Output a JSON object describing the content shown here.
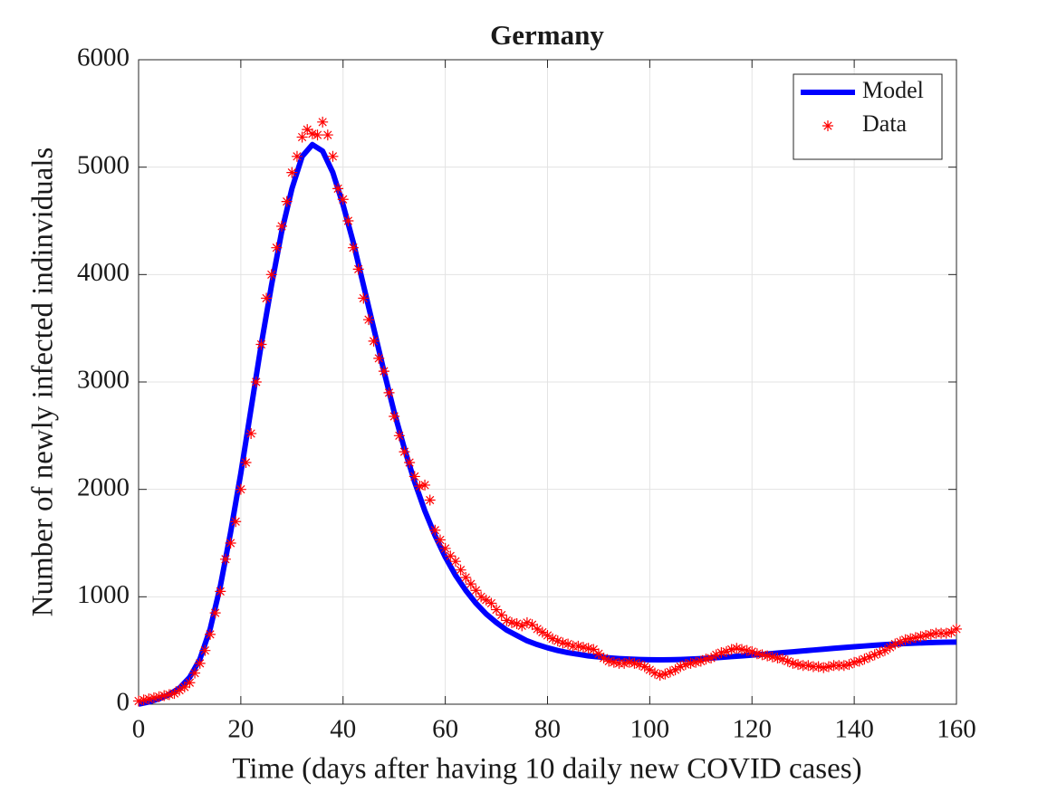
{
  "chart_data": {
    "type": "line",
    "title": "Germany",
    "x_label": "Time (days after having 10 daily new COVID cases)",
    "y_label": "Number of newly infected indinviduals",
    "xlim": [
      0,
      160
    ],
    "xticks": [
      0,
      20,
      40,
      60,
      80,
      100,
      120,
      140,
      160
    ],
    "ylim": [
      0,
      6000
    ],
    "yticks": [
      0,
      1000,
      2000,
      3000,
      4000,
      5000,
      6000
    ],
    "grid": true,
    "legend": "upper right",
    "series": [
      {
        "name": "Model",
        "type": "line",
        "color": "#0000ff",
        "x": [
          0,
          2,
          4,
          6,
          8,
          10,
          12,
          14,
          16,
          18,
          20,
          22,
          24,
          26,
          28,
          30,
          32,
          34,
          36,
          38,
          40,
          42,
          44,
          46,
          48,
          50,
          52,
          54,
          56,
          58,
          60,
          62,
          64,
          66,
          68,
          70,
          72,
          74,
          76,
          78,
          80,
          82,
          84,
          86,
          88,
          90,
          92,
          94,
          96,
          98,
          100,
          102,
          104,
          106,
          108,
          110,
          112,
          114,
          116,
          118,
          120,
          122,
          124,
          126,
          128,
          130,
          132,
          134,
          136,
          138,
          140,
          142,
          144,
          146,
          148,
          150,
          152,
          154,
          156,
          158,
          160
        ],
        "values": [
          0,
          20,
          50,
          90,
          150,
          250,
          420,
          700,
          1100,
          1600,
          2150,
          2750,
          3350,
          3900,
          4400,
          4800,
          5100,
          5210,
          5150,
          4950,
          4650,
          4300,
          3900,
          3500,
          3100,
          2720,
          2380,
          2070,
          1800,
          1570,
          1370,
          1200,
          1060,
          940,
          840,
          760,
          690,
          640,
          590,
          555,
          525,
          500,
          480,
          465,
          450,
          440,
          432,
          425,
          420,
          416,
          414,
          413,
          414,
          416,
          420,
          425,
          430,
          436,
          443,
          450,
          457,
          464,
          472,
          480,
          488,
          496,
          504,
          512,
          520,
          528,
          535,
          542,
          549,
          555,
          560,
          565,
          569,
          572,
          575,
          577,
          578
        ]
      },
      {
        "name": "Data",
        "type": "scatter",
        "color": "#ff0000",
        "x": [
          0,
          1,
          2,
          3,
          4,
          5,
          6,
          7,
          8,
          9,
          10,
          11,
          12,
          13,
          14,
          15,
          16,
          17,
          18,
          19,
          20,
          21,
          22,
          23,
          24,
          25,
          26,
          27,
          28,
          29,
          30,
          31,
          32,
          33,
          34,
          35,
          36,
          37,
          38,
          39,
          40,
          41,
          42,
          43,
          44,
          45,
          46,
          47,
          48,
          49,
          50,
          51,
          52,
          53,
          54,
          55,
          56,
          57,
          58,
          59,
          60,
          61,
          62,
          63,
          64,
          65,
          66,
          67,
          68,
          69,
          70,
          71,
          72,
          73,
          74,
          75,
          76,
          77,
          78,
          79,
          80,
          81,
          82,
          83,
          84,
          85,
          86,
          87,
          88,
          89,
          90,
          91,
          92,
          93,
          94,
          95,
          96,
          97,
          98,
          99,
          100,
          101,
          102,
          103,
          104,
          105,
          106,
          107,
          108,
          109,
          110,
          111,
          112,
          113,
          114,
          115,
          116,
          117,
          118,
          119,
          120,
          121,
          122,
          123,
          124,
          125,
          126,
          127,
          128,
          129,
          130,
          131,
          132,
          133,
          134,
          135,
          136,
          137,
          138,
          139,
          140,
          141,
          142,
          143,
          144,
          145,
          146,
          147,
          148,
          149,
          150,
          151,
          152,
          153,
          154,
          155,
          156,
          157,
          158,
          159,
          160
        ],
        "values": [
          30,
          40,
          50,
          60,
          70,
          80,
          90,
          100,
          130,
          160,
          200,
          290,
          380,
          500,
          650,
          850,
          1050,
          1350,
          1500,
          1700,
          2000,
          2250,
          2520,
          3000,
          3350,
          3780,
          4000,
          4250,
          4450,
          4680,
          4950,
          5100,
          5280,
          5350,
          5310,
          5300,
          5420,
          5300,
          5100,
          4800,
          4700,
          4500,
          4250,
          4050,
          3780,
          3580,
          3380,
          3220,
          3100,
          2900,
          2680,
          2500,
          2350,
          2250,
          2120,
          2030,
          2040,
          1900,
          1620,
          1530,
          1450,
          1380,
          1330,
          1250,
          1180,
          1120,
          1060,
          1000,
          970,
          940,
          880,
          830,
          780,
          760,
          750,
          730,
          760,
          740,
          700,
          670,
          640,
          610,
          590,
          570,
          560,
          540,
          540,
          530,
          520,
          510,
          470,
          430,
          400,
          390,
          380,
          380,
          390,
          380,
          370,
          350,
          320,
          290,
          270,
          280,
          300,
          320,
          350,
          370,
          380,
          390,
          400,
          420,
          430,
          460,
          480,
          490,
          510,
          520,
          510,
          500,
          490,
          470,
          460,
          450,
          440,
          430,
          420,
          400,
          380,
          370,
          360,
          360,
          350,
          350,
          340,
          350,
          360,
          360,
          360,
          370,
          390,
          400,
          420,
          440,
          460,
          480,
          500,
          530,
          560,
          580,
          600,
          610,
          620,
          630,
          640,
          650,
          660,
          660,
          660,
          670,
          700
        ]
      }
    ]
  }
}
